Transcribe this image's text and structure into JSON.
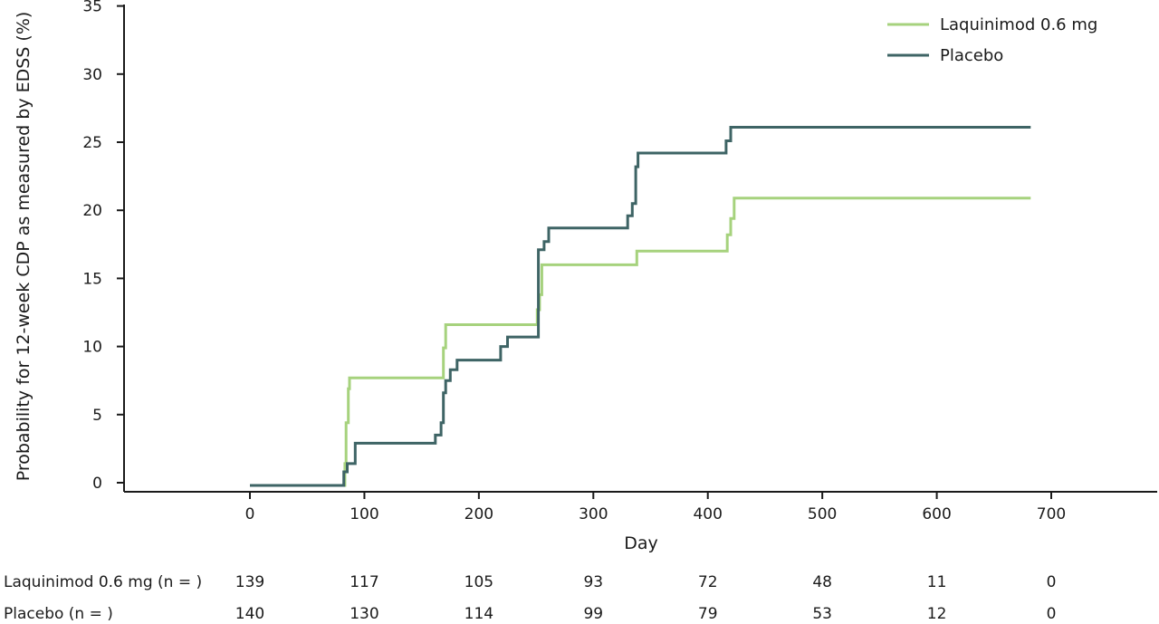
{
  "chart_data": {
    "type": "line",
    "step": true,
    "xlabel": "Day",
    "ylabel": "Probability for 12-week CDP as measured by EDSS (%)",
    "xlim": [
      -110,
      790
    ],
    "ylim": [
      -0.8,
      35
    ],
    "x_ticks": [
      0,
      100,
      200,
      300,
      400,
      500,
      600,
      700
    ],
    "x_tick_labels": [
      "0",
      "100",
      "200",
      "300",
      "400",
      "500",
      "600",
      "700"
    ],
    "y_ticks": [
      0,
      5,
      10,
      15,
      20,
      25,
      30,
      35
    ],
    "y_tick_labels": [
      "0",
      "5",
      "10",
      "15",
      "20",
      "25",
      "30",
      "35"
    ],
    "grid": false,
    "legend_position": "top-right",
    "series": [
      {
        "name": "Laquinimod 0.6 mg",
        "color": "#a6d27d",
        "points": [
          [
            0,
            -0.2
          ],
          [
            83,
            -0.2
          ],
          [
            83,
            1.4
          ],
          [
            84,
            1.4
          ],
          [
            84,
            4.4
          ],
          [
            86,
            4.4
          ],
          [
            86,
            6.9
          ],
          [
            87,
            6.9
          ],
          [
            87,
            7.7
          ],
          [
            169,
            7.7
          ],
          [
            169,
            9.9
          ],
          [
            171,
            9.9
          ],
          [
            171,
            11.6
          ],
          [
            251,
            11.6
          ],
          [
            251,
            12.7
          ],
          [
            253,
            12.7
          ],
          [
            253,
            13.8
          ],
          [
            255,
            13.8
          ],
          [
            255,
            16.0
          ],
          [
            338,
            16.0
          ],
          [
            338,
            17.0
          ],
          [
            417,
            17.0
          ],
          [
            417,
            18.2
          ],
          [
            420,
            18.2
          ],
          [
            420,
            19.4
          ],
          [
            423,
            19.4
          ],
          [
            423,
            20.9
          ],
          [
            682,
            20.9
          ]
        ]
      },
      {
        "name": "Placebo",
        "color": "#3e6465",
        "points": [
          [
            0,
            -0.2
          ],
          [
            82,
            -0.2
          ],
          [
            82,
            0.8
          ],
          [
            85,
            0.8
          ],
          [
            85,
            1.4
          ],
          [
            92,
            1.4
          ],
          [
            92,
            2.9
          ],
          [
            162,
            2.9
          ],
          [
            162,
            3.5
          ],
          [
            167,
            3.5
          ],
          [
            167,
            4.4
          ],
          [
            169,
            4.4
          ],
          [
            169,
            6.6
          ],
          [
            171,
            6.6
          ],
          [
            171,
            7.5
          ],
          [
            175,
            7.5
          ],
          [
            175,
            8.3
          ],
          [
            181,
            8.3
          ],
          [
            181,
            9.0
          ],
          [
            219,
            9.0
          ],
          [
            219,
            10.0
          ],
          [
            225,
            10.0
          ],
          [
            225,
            10.7
          ],
          [
            252,
            10.7
          ],
          [
            252,
            17.1
          ],
          [
            257,
            17.1
          ],
          [
            257,
            17.7
          ],
          [
            261,
            17.7
          ],
          [
            261,
            18.7
          ],
          [
            330,
            18.7
          ],
          [
            330,
            19.6
          ],
          [
            334,
            19.6
          ],
          [
            334,
            20.5
          ],
          [
            337,
            20.5
          ],
          [
            337,
            23.2
          ],
          [
            339,
            23.2
          ],
          [
            339,
            24.2
          ],
          [
            416,
            24.2
          ],
          [
            416,
            25.1
          ],
          [
            420,
            25.1
          ],
          [
            420,
            26.1
          ],
          [
            682,
            26.1
          ]
        ]
      }
    ]
  },
  "risk_table": {
    "rows": [
      {
        "label": "Laquinimod 0.6 mg  (n = )",
        "values": [
          "139",
          "117",
          "105",
          "93",
          "72",
          "48",
          "11",
          "0"
        ]
      },
      {
        "label": "Placebo  (n = )",
        "values": [
          "140",
          "130",
          "114",
          "99",
          "79",
          "53",
          "12",
          "0"
        ]
      }
    ]
  }
}
